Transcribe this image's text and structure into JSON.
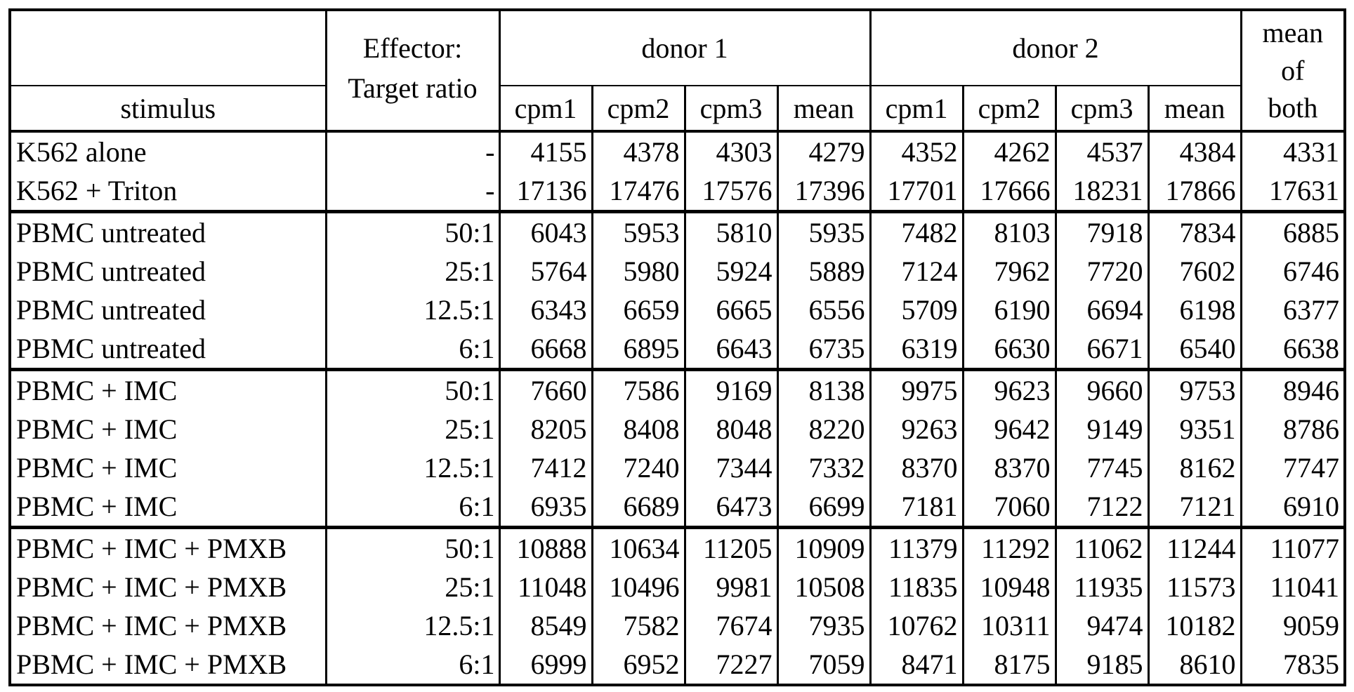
{
  "colors": {
    "ink": "#000000",
    "paper": "#ffffff"
  },
  "table": {
    "headers": {
      "stimulus": "stimulus",
      "effector_line1": "Effector:",
      "effector_line2": "Target ratio",
      "donor1": "donor 1",
      "donor2": "donor 2",
      "subcolumns": [
        "cpm1",
        "cpm2",
        "cpm3",
        "mean"
      ],
      "mean_of_both_lines": [
        "mean",
        "of",
        "both"
      ]
    },
    "rows": [
      {
        "stimulus": "K562 alone",
        "ratio": "-",
        "group_start": false,
        "values": [
          4155,
          4378,
          4303,
          4279,
          4352,
          4262,
          4537,
          4384,
          4331
        ]
      },
      {
        "stimulus": "K562 + Triton",
        "ratio": "-",
        "group_start": false,
        "values": [
          17136,
          17476,
          17576,
          17396,
          17701,
          17666,
          18231,
          17866,
          17631
        ]
      },
      {
        "stimulus": "PBMC untreated",
        "ratio": "50:1",
        "group_start": true,
        "values": [
          6043,
          5953,
          5810,
          5935,
          7482,
          8103,
          7918,
          7834,
          6885
        ]
      },
      {
        "stimulus": "PBMC untreated",
        "ratio": "25:1",
        "group_start": false,
        "values": [
          5764,
          5980,
          5924,
          5889,
          7124,
          7962,
          7720,
          7602,
          6746
        ]
      },
      {
        "stimulus": "PBMC untreated",
        "ratio": "12.5:1",
        "group_start": false,
        "values": [
          6343,
          6659,
          6665,
          6556,
          5709,
          6190,
          6694,
          6198,
          6377
        ]
      },
      {
        "stimulus": "PBMC untreated",
        "ratio": "6:1",
        "group_start": false,
        "values": [
          6668,
          6895,
          6643,
          6735,
          6319,
          6630,
          6671,
          6540,
          6638
        ]
      },
      {
        "stimulus": "PBMC + IMC",
        "ratio": "50:1",
        "group_start": true,
        "values": [
          7660,
          7586,
          9169,
          8138,
          9975,
          9623,
          9660,
          9753,
          8946
        ]
      },
      {
        "stimulus": "PBMC + IMC",
        "ratio": "25:1",
        "group_start": false,
        "values": [
          8205,
          8408,
          8048,
          8220,
          9263,
          9642,
          9149,
          9351,
          8786
        ]
      },
      {
        "stimulus": "PBMC + IMC",
        "ratio": "12.5:1",
        "group_start": false,
        "values": [
          7412,
          7240,
          7344,
          7332,
          8370,
          8370,
          7745,
          8162,
          7747
        ]
      },
      {
        "stimulus": "PBMC + IMC",
        "ratio": "6:1",
        "group_start": false,
        "values": [
          6935,
          6689,
          6473,
          6699,
          7181,
          7060,
          7122,
          7121,
          6910
        ]
      },
      {
        "stimulus": "PBMC + IMC + PMXB",
        "ratio": "50:1",
        "group_start": true,
        "values": [
          10888,
          10634,
          11205,
          10909,
          11379,
          11292,
          11062,
          11244,
          11077
        ]
      },
      {
        "stimulus": "PBMC + IMC + PMXB",
        "ratio": "25:1",
        "group_start": false,
        "values": [
          11048,
          10496,
          9981,
          10508,
          11835,
          10948,
          11935,
          11573,
          11041
        ]
      },
      {
        "stimulus": "PBMC + IMC + PMXB",
        "ratio": "12.5:1",
        "group_start": false,
        "values": [
          8549,
          7582,
          7674,
          7935,
          10762,
          10311,
          9474,
          10182,
          9059
        ]
      },
      {
        "stimulus": "PBMC + IMC + PMXB",
        "ratio": "6:1",
        "group_start": false,
        "values": [
          6999,
          6952,
          7227,
          7059,
          8471,
          8175,
          9185,
          8610,
          7835
        ]
      }
    ]
  }
}
